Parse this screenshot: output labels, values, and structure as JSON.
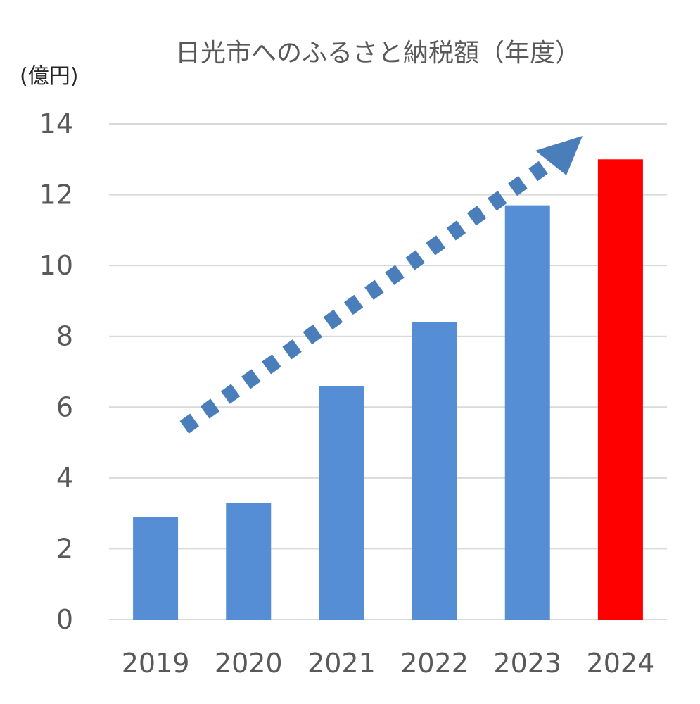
{
  "chart_data": {
    "type": "bar",
    "title": "日光市へのふるさと納税額（年度）",
    "ylabel": "(億円)",
    "xlabel": "",
    "categories": [
      "2019",
      "2020",
      "2021",
      "2022",
      "2023",
      "2024"
    ],
    "values": [
      2.9,
      3.3,
      6.6,
      8.4,
      11.7,
      13.0
    ],
    "ylim": [
      0,
      14
    ],
    "yticks": [
      "0",
      "2",
      "4",
      "6",
      "8",
      "10",
      "12",
      "14"
    ],
    "grid": true,
    "legend": "none",
    "annotations": [
      {
        "type": "trend-arrow",
        "style": "dotted",
        "direction": "upward",
        "from_category": "2019",
        "to_category": "2023"
      }
    ]
  },
  "colors": {
    "default_bar": "#558ed5",
    "highlight_bar": "#ff0000",
    "highlight_category": "2024",
    "arrow": "#4a7ebb"
  }
}
